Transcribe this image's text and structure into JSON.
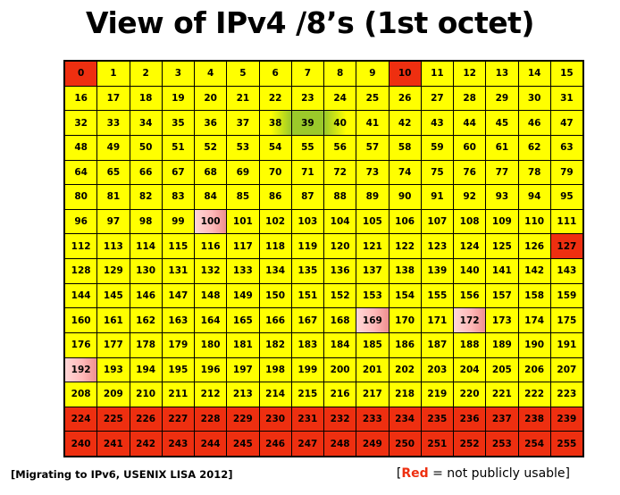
{
  "title": "View of IPv4 /8’s (1st octet)",
  "footer_left": "[Migrating to IPv6, USENIX LISA 2012]",
  "legend": {
    "open_bracket": "[",
    "red_word": "Red",
    "rest": " = not publicly usable]"
  },
  "colors": {
    "usable": "#ffff00",
    "not_usable": "#ee2f10",
    "partially_reserved": "#ffc0c0",
    "highlight": "#9bc92a"
  },
  "grid": {
    "columns": 16,
    "rows": 16,
    "cells": [
      "0",
      "1",
      "2",
      "3",
      "4",
      "5",
      "6",
      "7",
      "8",
      "9",
      "10",
      "11",
      "12",
      "13",
      "14",
      "15",
      "16",
      "17",
      "18",
      "19",
      "20",
      "21",
      "22",
      "23",
      "24",
      "25",
      "26",
      "27",
      "28",
      "29",
      "30",
      "31",
      "32",
      "33",
      "34",
      "35",
      "36",
      "37",
      "38",
      "39",
      "40",
      "41",
      "42",
      "43",
      "44",
      "45",
      "46",
      "47",
      "48",
      "49",
      "50",
      "51",
      "52",
      "53",
      "54",
      "55",
      "56",
      "57",
      "58",
      "59",
      "60",
      "61",
      "62",
      "63",
      "64",
      "65",
      "66",
      "67",
      "68",
      "69",
      "70",
      "71",
      "72",
      "73",
      "74",
      "75",
      "76",
      "77",
      "78",
      "79",
      "80",
      "81",
      "82",
      "83",
      "84",
      "85",
      "86",
      "87",
      "88",
      "89",
      "90",
      "91",
      "92",
      "93",
      "94",
      "95",
      "96",
      "97",
      "98",
      "99",
      "100",
      "101",
      "102",
      "103",
      "104",
      "105",
      "106",
      "107",
      "108",
      "109",
      "110",
      "111",
      "112",
      "113",
      "114",
      "115",
      "116",
      "117",
      "118",
      "119",
      "120",
      "121",
      "122",
      "123",
      "124",
      "125",
      "126",
      "127",
      "128",
      "129",
      "130",
      "131",
      "132",
      "133",
      "134",
      "135",
      "136",
      "137",
      "138",
      "139",
      "140",
      "141",
      "142",
      "143",
      "144",
      "145",
      "146",
      "147",
      "148",
      "149",
      "150",
      "151",
      "152",
      "153",
      "154",
      "155",
      "156",
      "157",
      "158",
      "159",
      "160",
      "161",
      "162",
      "163",
      "164",
      "165",
      "166",
      "167",
      "168",
      "169",
      "170",
      "171",
      "172",
      "173",
      "174",
      "175",
      "176",
      "177",
      "178",
      "179",
      "180",
      "181",
      "182",
      "183",
      "184",
      "185",
      "186",
      "187",
      "188",
      "189",
      "190",
      "191",
      "192",
      "193",
      "194",
      "195",
      "196",
      "197",
      "198",
      "199",
      "200",
      "201",
      "202",
      "203",
      "204",
      "205",
      "206",
      "207",
      "208",
      "209",
      "210",
      "211",
      "212",
      "213",
      "214",
      "215",
      "216",
      "217",
      "218",
      "219",
      "220",
      "221",
      "222",
      "223",
      "224",
      "225",
      "226",
      "227",
      "228",
      "229",
      "230",
      "231",
      "232",
      "233",
      "234",
      "235",
      "236",
      "237",
      "238",
      "239",
      "240",
      "241",
      "242",
      "243",
      "244",
      "245",
      "246",
      "247",
      "248",
      "249",
      "250",
      "251",
      "252",
      "253",
      "254",
      "255"
    ],
    "red": [
      0,
      10,
      127,
      224,
      225,
      226,
      227,
      228,
      229,
      230,
      231,
      232,
      233,
      234,
      235,
      236,
      237,
      238,
      239,
      240,
      241,
      242,
      243,
      244,
      245,
      246,
      247,
      248,
      249,
      250,
      251,
      252,
      253,
      254,
      255
    ],
    "pink": [
      100,
      169,
      172,
      192
    ],
    "green": [
      39
    ],
    "green_left": [
      38
    ],
    "green_right": [
      40
    ]
  }
}
